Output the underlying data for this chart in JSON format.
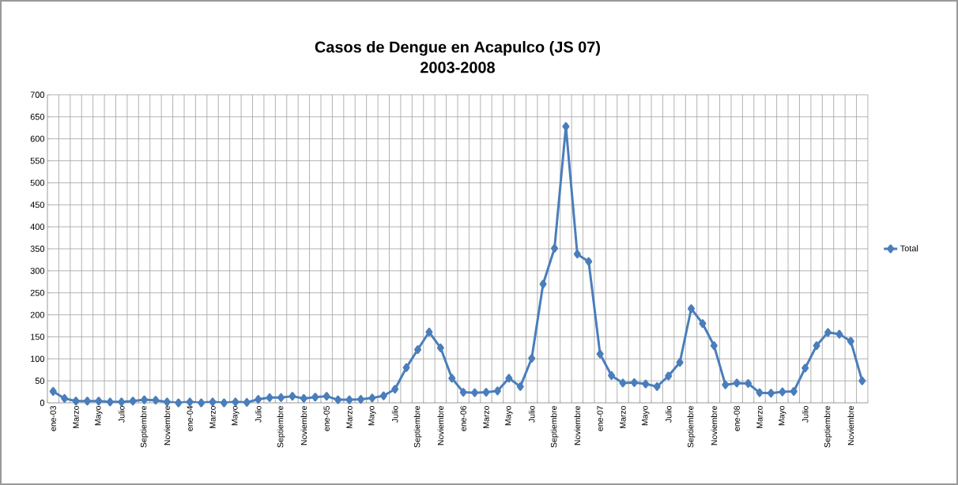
{
  "chart_data": {
    "type": "line",
    "title": "Casos de Dengue en Acapulco (JS 07)",
    "subtitle": "2003-2008",
    "categories": [
      "ene-03",
      null,
      "Marzo",
      null,
      "Mayo",
      null,
      "Julio",
      null,
      "Septiembre",
      null,
      "Noviembre",
      null,
      "ene-04",
      null,
      "Marzo",
      null,
      "Mayo",
      null,
      "Julio",
      null,
      "Septiembre",
      null,
      "Noviembre",
      null,
      "ene-05",
      null,
      "Marzo",
      null,
      "Mayo",
      null,
      "Julio",
      null,
      "Septiembre",
      null,
      "Noviembre",
      null,
      "ene-06",
      null,
      "Marzo",
      null,
      "Mayo",
      null,
      "Julio",
      null,
      "Septiembre",
      null,
      "Noviembre",
      null,
      "ene-07",
      null,
      "Marzo",
      null,
      "Mayo",
      null,
      "Julio",
      null,
      "Septiembre",
      null,
      "Noviembre",
      null,
      "ene-08",
      null,
      "Marzo",
      null,
      "Mayo",
      null,
      "Julio",
      null,
      "Septiembre",
      null,
      "Noviembre",
      null
    ],
    "series": [
      {
        "name": "Total",
        "color": "#4a7ebb",
        "values": [
          26,
          10,
          4,
          4,
          4,
          2,
          2,
          4,
          7,
          6,
          2,
          0,
          2,
          0,
          2,
          0,
          2,
          1,
          8,
          12,
          12,
          15,
          10,
          13,
          15,
          7,
          7,
          8,
          11,
          16,
          31,
          80,
          121,
          161,
          125,
          56,
          24,
          23,
          24,
          27,
          56,
          37,
          101,
          270,
          351,
          628,
          338,
          321,
          111,
          62,
          45,
          46,
          43,
          37,
          61,
          92,
          214,
          180,
          130,
          41,
          45,
          44,
          23,
          22,
          25,
          26,
          79,
          130,
          160,
          156,
          140,
          50
        ]
      }
    ],
    "ylim": [
      0,
      700
    ],
    "yticks": [
      0,
      50,
      100,
      150,
      200,
      250,
      300,
      350,
      400,
      450,
      500,
      550,
      600,
      650,
      700
    ],
    "grid": true,
    "legend": "right",
    "marker": "diamond",
    "line_style": "solid"
  }
}
